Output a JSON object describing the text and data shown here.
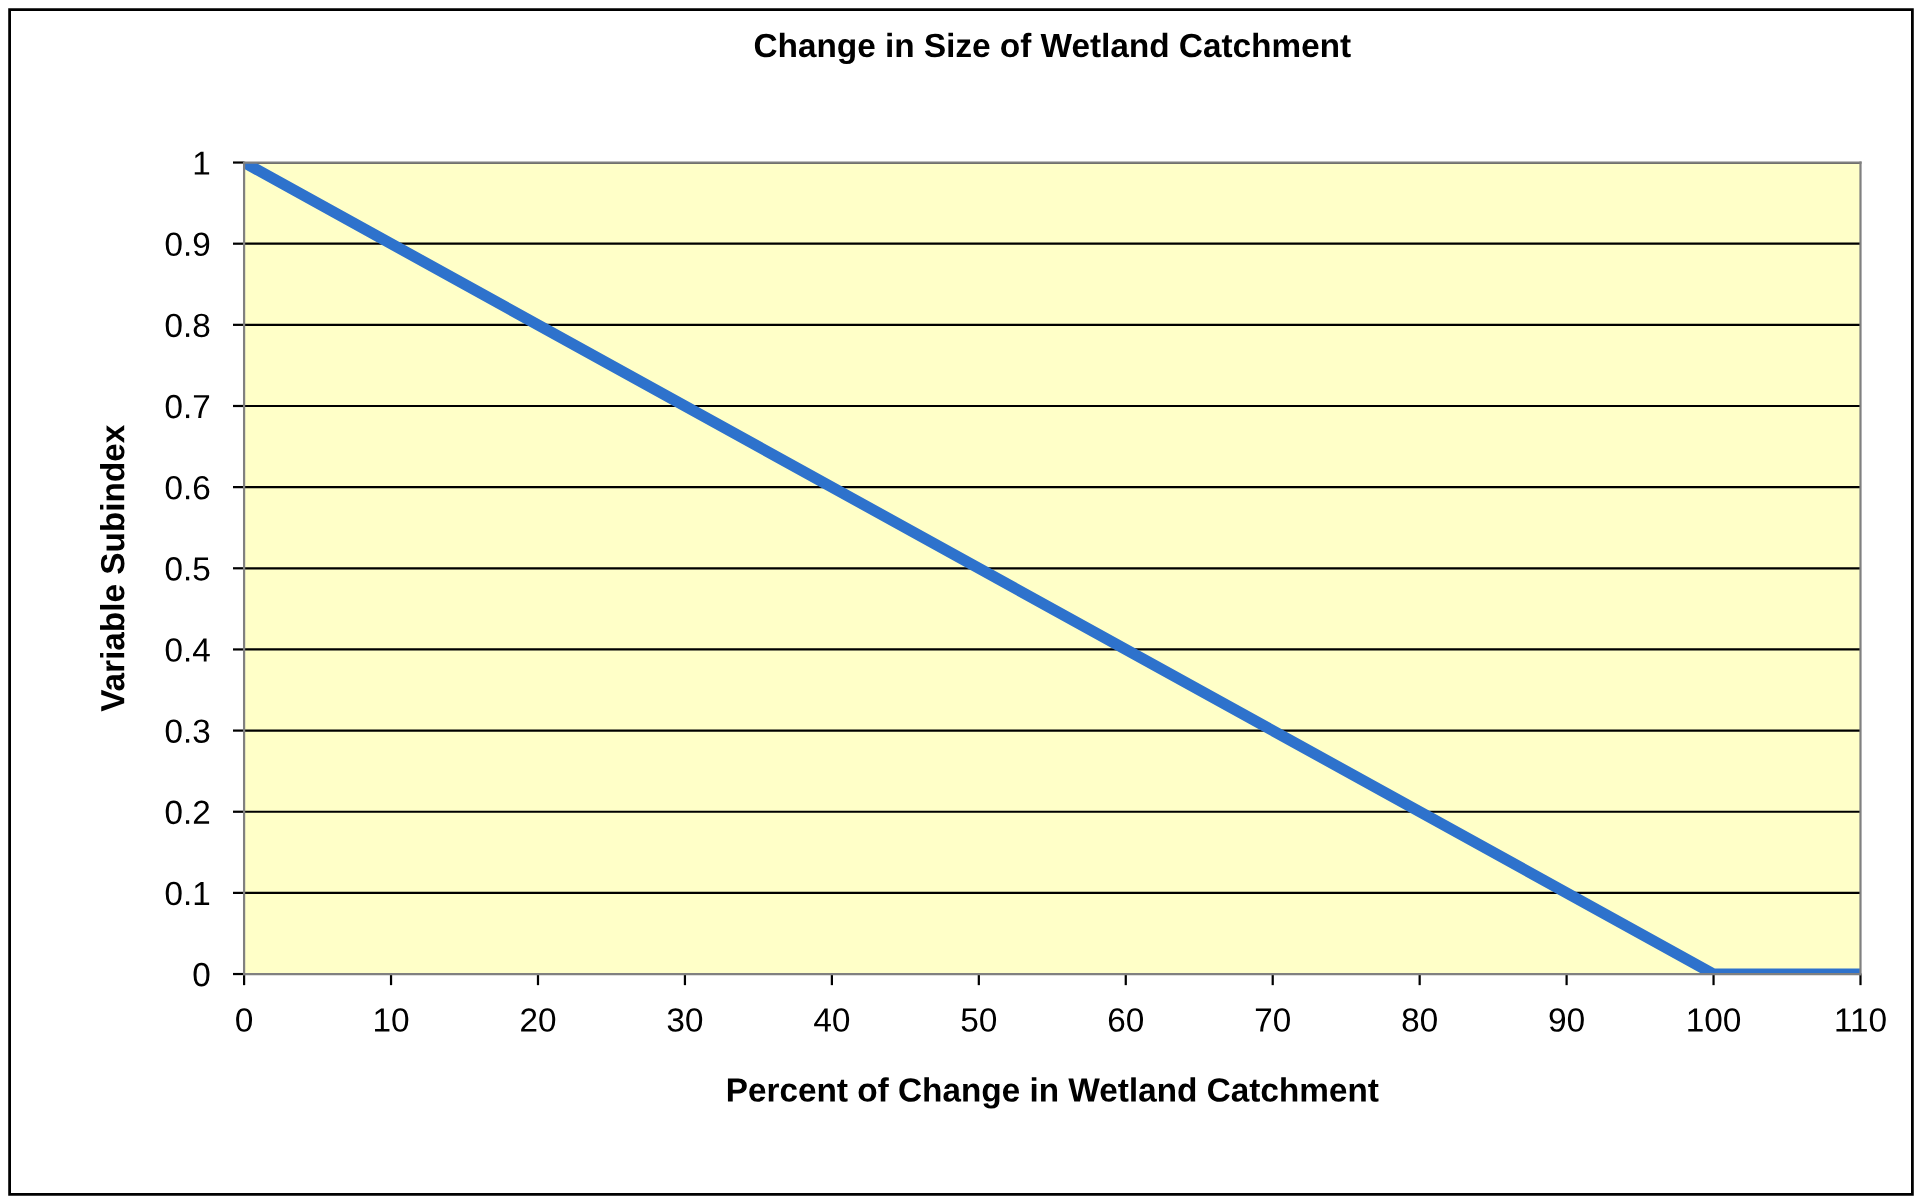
{
  "chart_data": {
    "type": "line",
    "title": "Change in Size of Wetland Catchment",
    "xlabel": "Percent of Change in Wetland Catchment",
    "ylabel": "Variable Subindex",
    "x": [
      0,
      100,
      110
    ],
    "series": [
      {
        "color": "#2e72cc",
        "values": [
          1,
          0,
          0
        ]
      }
    ],
    "xlim": [
      0,
      110
    ],
    "xticks": [
      0,
      10,
      20,
      30,
      40,
      50,
      60,
      70,
      80,
      90,
      100,
      110
    ],
    "ylim": [
      0,
      1
    ],
    "yticks": [
      0,
      0.1,
      0.2,
      0.3,
      0.4,
      0.5,
      0.6,
      0.7,
      0.8,
      0.9,
      1
    ],
    "grid": "y",
    "marker": "none",
    "line_style": "solid"
  }
}
